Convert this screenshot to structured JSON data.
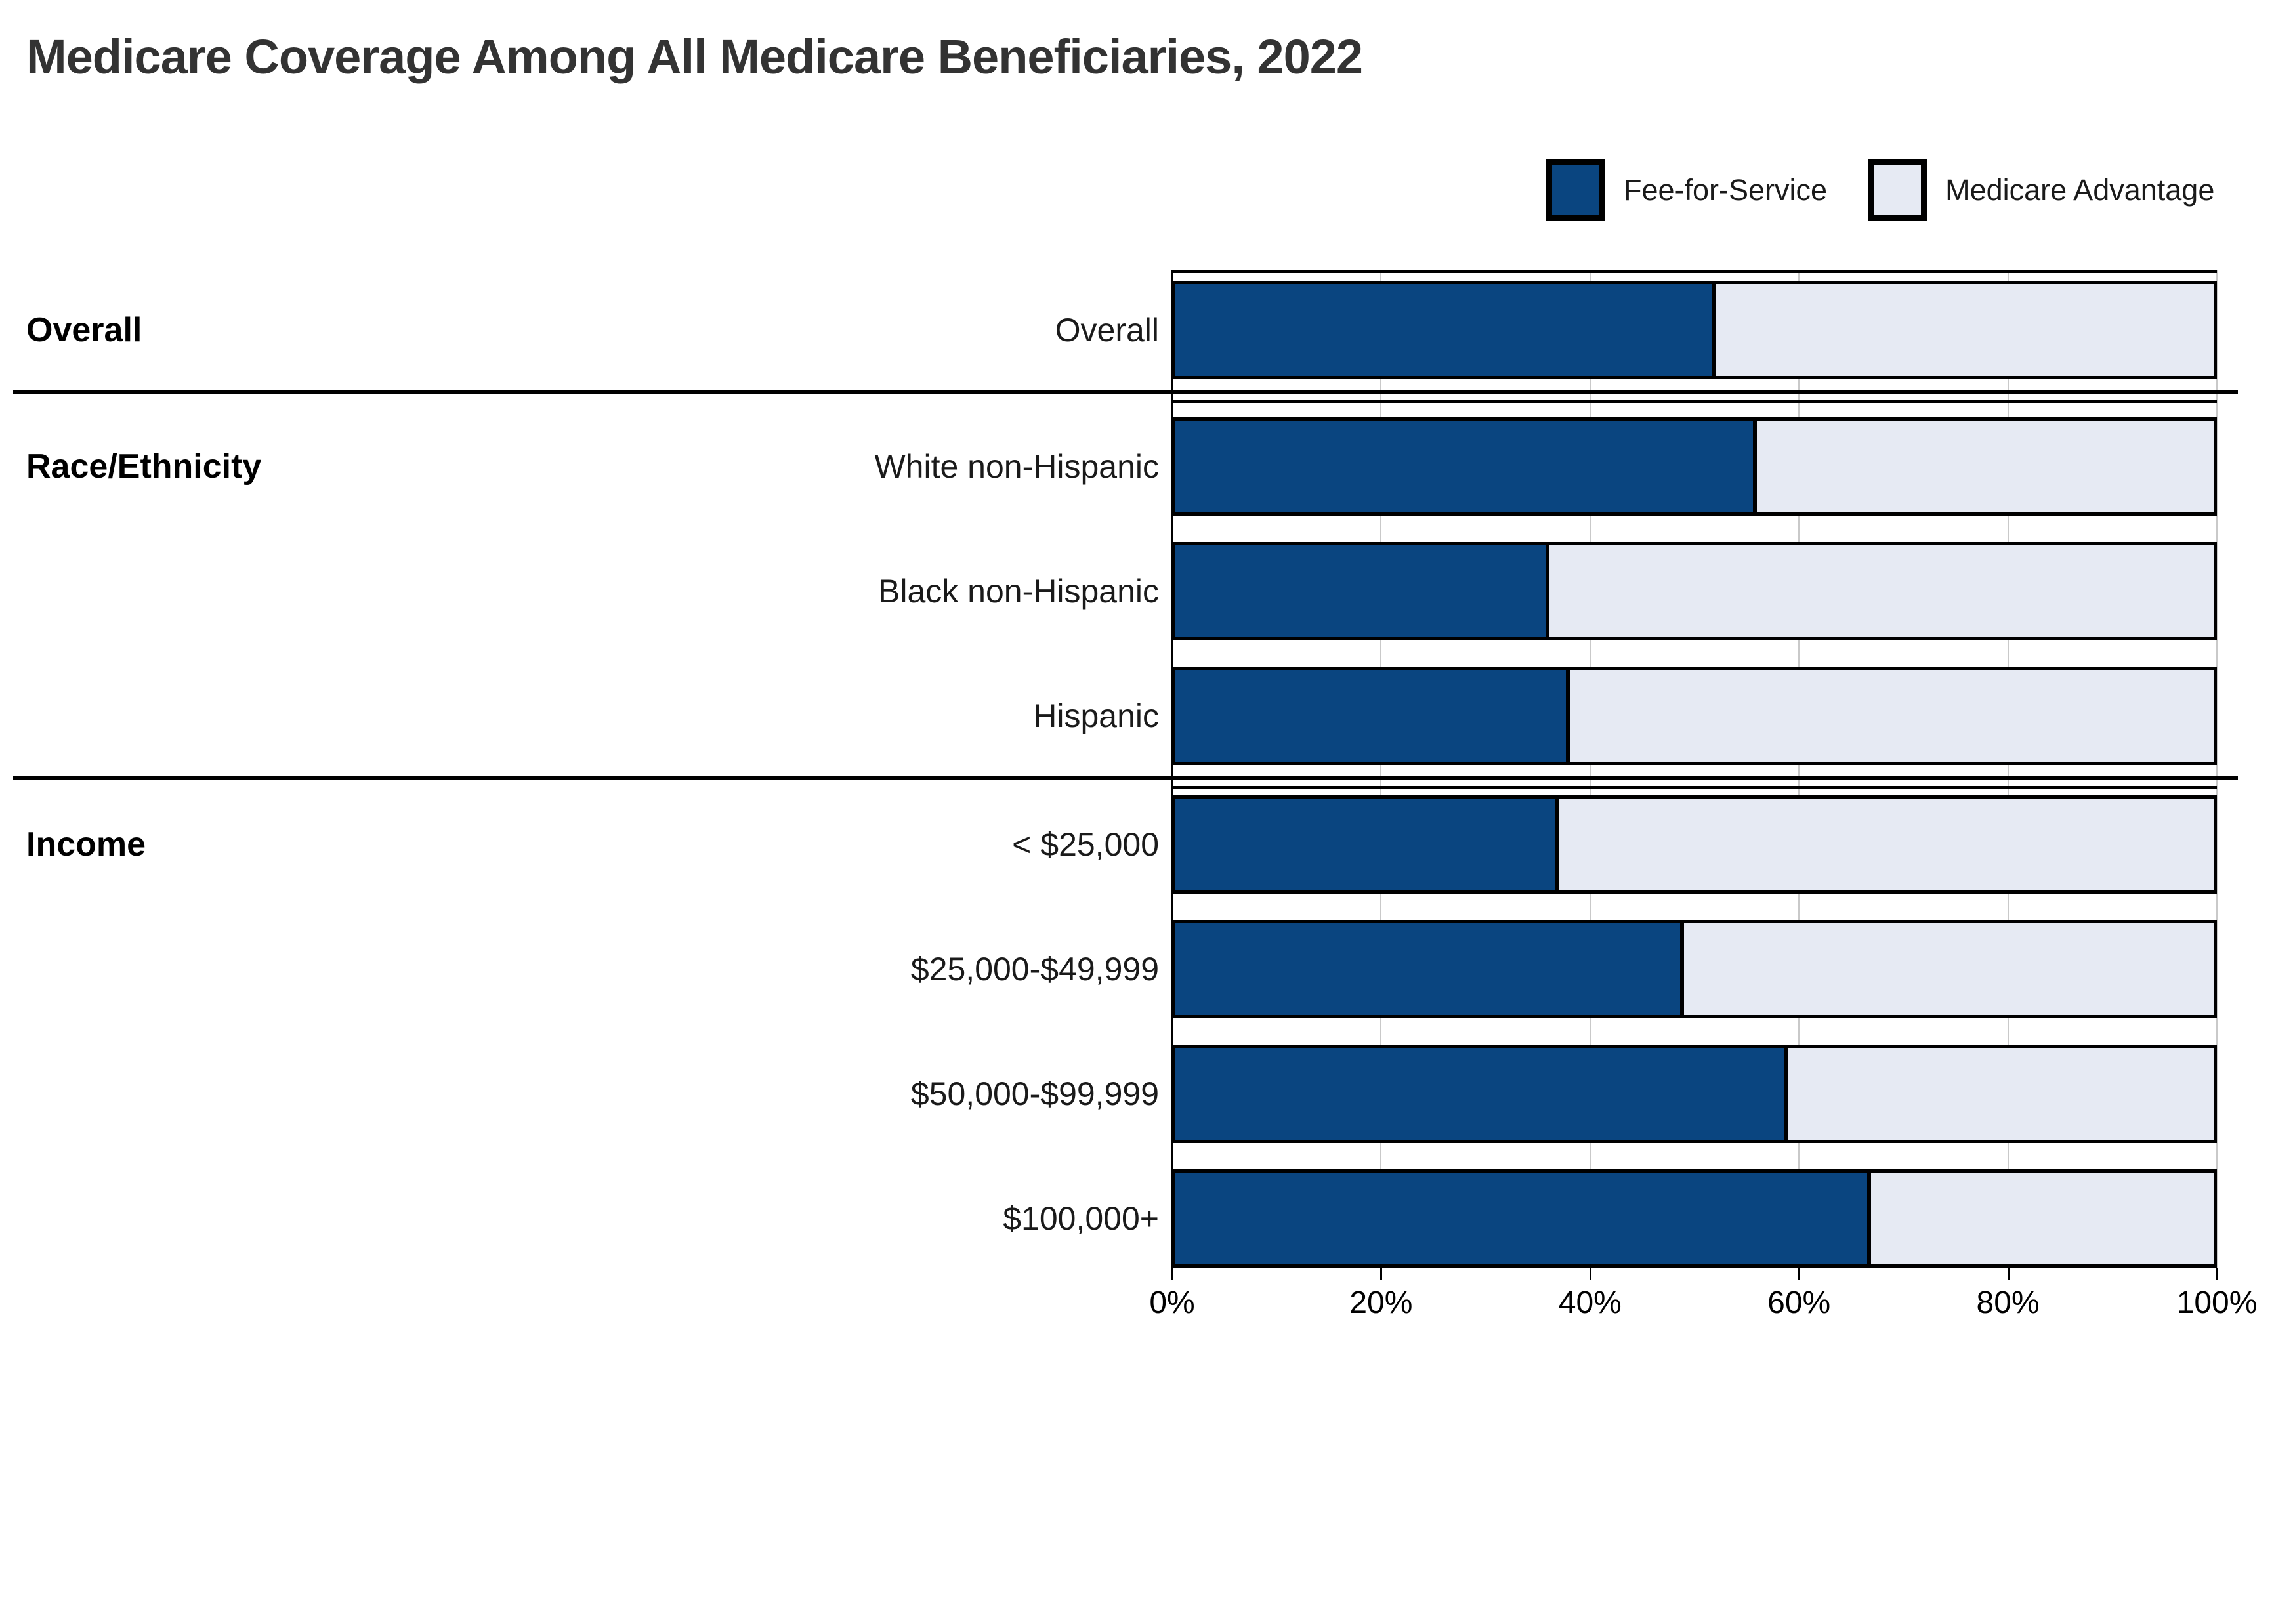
{
  "title": "Medicare Coverage Among All Medicare Beneficiaries, 2022",
  "legend": {
    "items": [
      {
        "label": "Fee-for-Service",
        "color": "#0A4580"
      },
      {
        "label": "Medicare Advantage",
        "color": "#E6EAF3"
      }
    ]
  },
  "chart_data": {
    "type": "bar",
    "stacked": true,
    "orientation": "horizontal",
    "units": "percent",
    "title": "Medicare Coverage Among All Medicare Beneficiaries, 2022",
    "categories": [
      "Overall",
      "White non-Hispanic",
      "Black non-Hispanic",
      "Hispanic",
      "< $25,000",
      "$25,000-$49,999",
      "$50,000-$99,999",
      "$100,000+"
    ],
    "series": [
      {
        "name": "Fee-for-Service",
        "color": "#0A4580",
        "values": [
          52,
          56,
          36,
          38,
          37,
          49,
          59,
          67
        ]
      },
      {
        "name": "Medicare Advantage",
        "color": "#E6EAF3",
        "values": [
          48,
          44,
          64,
          62,
          63,
          51,
          41,
          33
        ]
      }
    ],
    "sections": [
      {
        "label": "Overall",
        "row_indexes": [
          0
        ]
      },
      {
        "label": "Race/Ethnicity",
        "row_indexes": [
          1,
          2,
          3
        ]
      },
      {
        "label": "Income",
        "row_indexes": [
          4,
          5,
          6,
          7
        ]
      }
    ],
    "x_axis": {
      "min": 0,
      "max": 100,
      "tick_labels": [
        "0%",
        "20%",
        "40%",
        "60%",
        "80%",
        "100%"
      ],
      "tick_values": [
        0,
        20,
        40,
        60,
        80,
        100
      ]
    },
    "grid": true,
    "legend_position": "top-right",
    "colors": {
      "ffs": "#0A4580",
      "ma": "#E6EAF3",
      "bar_border": "#000000",
      "gridline": "#C9C9C9",
      "divider": "#000000",
      "title_text": "#333333",
      "label_text": "#1A1A1A"
    }
  }
}
